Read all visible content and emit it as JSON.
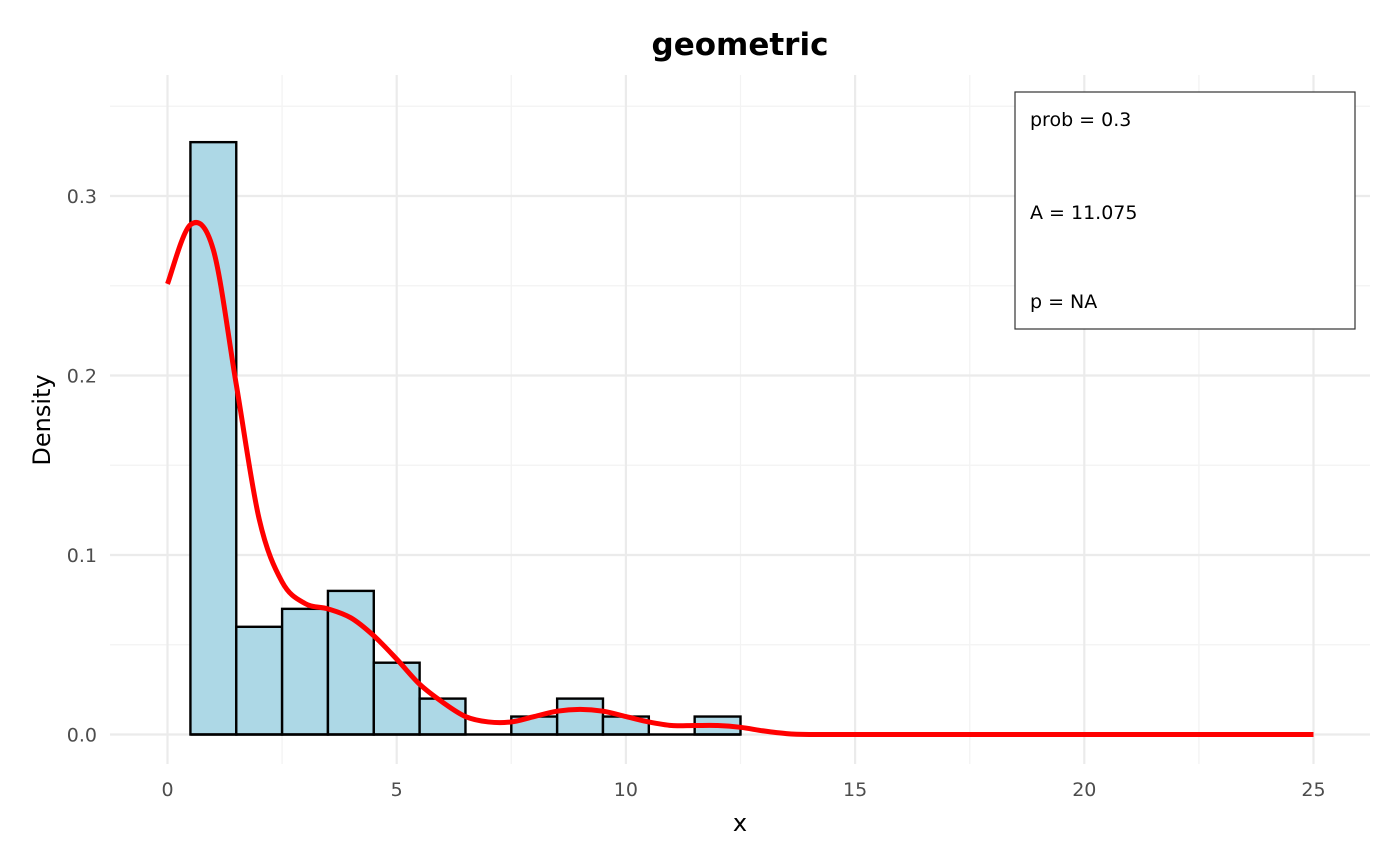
{
  "chart_data": {
    "type": "bar",
    "title": "geometric",
    "xlabel": "x",
    "ylabel": "Density",
    "xlim": [
      -2.5,
      26.25
    ],
    "ylim": [
      -0.016,
      0.367
    ],
    "x_ticks": [
      0,
      5,
      10,
      15,
      20,
      25
    ],
    "y_ticks": [
      0.0,
      0.1,
      0.2,
      0.3
    ],
    "x_tick_labels": [
      "0",
      "5",
      "10",
      "15",
      "20",
      "25"
    ],
    "y_tick_labels": [
      "0.0",
      "0.1",
      "0.2",
      "0.3"
    ],
    "grid": true,
    "bins": [
      {
        "x0": 0.5,
        "x1": 1.5,
        "value": 0.33
      },
      {
        "x0": 1.5,
        "x1": 2.5,
        "value": 0.06
      },
      {
        "x0": 2.5,
        "x1": 3.5,
        "value": 0.07
      },
      {
        "x0": 3.5,
        "x1": 4.5,
        "value": 0.08
      },
      {
        "x0": 4.5,
        "x1": 5.5,
        "value": 0.04
      },
      {
        "x0": 5.5,
        "x1": 6.5,
        "value": 0.02
      },
      {
        "x0": 6.5,
        "x1": 7.5,
        "value": 0.0
      },
      {
        "x0": 7.5,
        "x1": 8.5,
        "value": 0.01
      },
      {
        "x0": 8.5,
        "x1": 9.5,
        "value": 0.02
      },
      {
        "x0": 9.5,
        "x1": 10.5,
        "value": 0.01
      },
      {
        "x0": 10.5,
        "x1": 11.5,
        "value": 0.0
      },
      {
        "x0": 11.5,
        "x1": 12.5,
        "value": 0.01
      }
    ],
    "density_line": {
      "color": "#ff0000",
      "x": [
        0,
        0.5,
        1,
        1.5,
        2,
        2.5,
        3,
        3.5,
        4,
        4.5,
        5,
        5.5,
        6,
        6.5,
        7,
        7.5,
        8,
        8.5,
        9,
        9.5,
        10,
        10.5,
        11,
        11.5,
        12,
        12.5,
        13,
        13.5,
        14,
        15,
        20,
        25
      ],
      "y": [
        0.251,
        0.284,
        0.27,
        0.195,
        0.12,
        0.085,
        0.073,
        0.07,
        0.065,
        0.055,
        0.042,
        0.028,
        0.018,
        0.01,
        0.007,
        0.007,
        0.01,
        0.013,
        0.014,
        0.013,
        0.01,
        0.007,
        0.005,
        0.005,
        0.005,
        0.004,
        0.002,
        0.0005,
        0.0,
        0.0,
        0.0,
        0.0
      ]
    },
    "bar_fill": "#add8e6",
    "legend": {
      "placement": "top-right",
      "entries": [
        "prob = 0.3",
        "A = 11.075",
        "p = NA"
      ]
    }
  }
}
